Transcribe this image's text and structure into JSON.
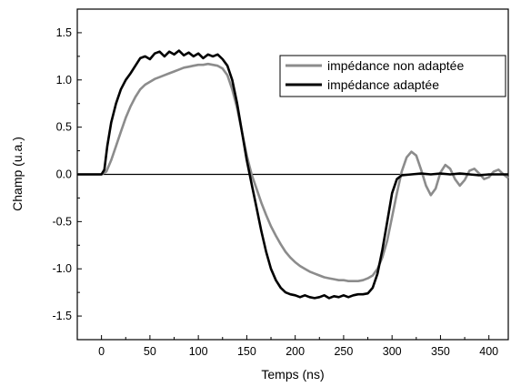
{
  "chart_data": {
    "type": "line",
    "xlabel": "Temps (ns)",
    "ylabel": "Champ (u.a.)",
    "xlim": [
      -25,
      420
    ],
    "ylim": [
      -1.75,
      1.75
    ],
    "x_ticks": [
      "0",
      "50",
      "100",
      "150",
      "200",
      "250",
      "300",
      "350",
      "400"
    ],
    "y_ticks": [
      "-1.5",
      "-1.0",
      "-0.5",
      "0.0",
      "0.5",
      "1.0",
      "1.5"
    ],
    "grid": false,
    "zero_line": true,
    "legend_position": "top-right",
    "series": [
      {
        "name": "impédance non adaptée",
        "color": "#8c8c8c",
        "points": [
          [
            -25,
            0.0
          ],
          [
            0,
            0.0
          ],
          [
            5,
            0.03
          ],
          [
            10,
            0.15
          ],
          [
            15,
            0.3
          ],
          [
            20,
            0.45
          ],
          [
            25,
            0.6
          ],
          [
            30,
            0.72
          ],
          [
            35,
            0.82
          ],
          [
            40,
            0.9
          ],
          [
            45,
            0.95
          ],
          [
            50,
            0.98
          ],
          [
            55,
            1.01
          ],
          [
            60,
            1.03
          ],
          [
            65,
            1.05
          ],
          [
            70,
            1.07
          ],
          [
            75,
            1.09
          ],
          [
            80,
            1.11
          ],
          [
            85,
            1.13
          ],
          [
            90,
            1.14
          ],
          [
            95,
            1.15
          ],
          [
            100,
            1.16
          ],
          [
            105,
            1.16
          ],
          [
            110,
            1.17
          ],
          [
            115,
            1.16
          ],
          [
            120,
            1.15
          ],
          [
            125,
            1.12
          ],
          [
            130,
            1.05
          ],
          [
            135,
            0.9
          ],
          [
            140,
            0.7
          ],
          [
            145,
            0.45
          ],
          [
            150,
            0.2
          ],
          [
            155,
            0.0
          ],
          [
            160,
            -0.15
          ],
          [
            165,
            -0.3
          ],
          [
            170,
            -0.43
          ],
          [
            175,
            -0.55
          ],
          [
            180,
            -0.65
          ],
          [
            185,
            -0.74
          ],
          [
            190,
            -0.82
          ],
          [
            195,
            -0.88
          ],
          [
            200,
            -0.93
          ],
          [
            205,
            -0.97
          ],
          [
            210,
            -1.0
          ],
          [
            215,
            -1.03
          ],
          [
            220,
            -1.05
          ],
          [
            225,
            -1.07
          ],
          [
            230,
            -1.09
          ],
          [
            235,
            -1.1
          ],
          [
            240,
            -1.11
          ],
          [
            245,
            -1.12
          ],
          [
            250,
            -1.12
          ],
          [
            255,
            -1.13
          ],
          [
            260,
            -1.13
          ],
          [
            265,
            -1.13
          ],
          [
            270,
            -1.12
          ],
          [
            275,
            -1.1
          ],
          [
            280,
            -1.07
          ],
          [
            285,
            -1.0
          ],
          [
            290,
            -0.88
          ],
          [
            295,
            -0.7
          ],
          [
            300,
            -0.45
          ],
          [
            305,
            -0.2
          ],
          [
            310,
            0.03
          ],
          [
            315,
            0.18
          ],
          [
            320,
            0.24
          ],
          [
            325,
            0.2
          ],
          [
            330,
            0.05
          ],
          [
            335,
            -0.12
          ],
          [
            340,
            -0.22
          ],
          [
            345,
            -0.15
          ],
          [
            350,
            0.02
          ],
          [
            355,
            0.1
          ],
          [
            360,
            0.06
          ],
          [
            365,
            -0.05
          ],
          [
            370,
            -0.12
          ],
          [
            375,
            -0.06
          ],
          [
            380,
            0.04
          ],
          [
            385,
            0.06
          ],
          [
            390,
            0.01
          ],
          [
            395,
            -0.05
          ],
          [
            400,
            -0.03
          ],
          [
            405,
            0.03
          ],
          [
            410,
            0.05
          ],
          [
            415,
            0.0
          ],
          [
            420,
            -0.04
          ]
        ]
      },
      {
        "name": "impédance adaptée",
        "color": "#000000",
        "points": [
          [
            -25,
            0.0
          ],
          [
            0,
            0.0
          ],
          [
            3,
            0.05
          ],
          [
            6,
            0.3
          ],
          [
            10,
            0.55
          ],
          [
            15,
            0.75
          ],
          [
            20,
            0.9
          ],
          [
            25,
            1.0
          ],
          [
            30,
            1.07
          ],
          [
            35,
            1.15
          ],
          [
            40,
            1.23
          ],
          [
            45,
            1.25
          ],
          [
            50,
            1.22
          ],
          [
            55,
            1.28
          ],
          [
            60,
            1.3
          ],
          [
            65,
            1.25
          ],
          [
            70,
            1.3
          ],
          [
            75,
            1.27
          ],
          [
            80,
            1.31
          ],
          [
            85,
            1.26
          ],
          [
            90,
            1.29
          ],
          [
            95,
            1.25
          ],
          [
            100,
            1.28
          ],
          [
            105,
            1.23
          ],
          [
            110,
            1.27
          ],
          [
            115,
            1.25
          ],
          [
            120,
            1.27
          ],
          [
            125,
            1.22
          ],
          [
            130,
            1.15
          ],
          [
            135,
            1.0
          ],
          [
            140,
            0.75
          ],
          [
            145,
            0.45
          ],
          [
            150,
            0.15
          ],
          [
            155,
            -0.1
          ],
          [
            160,
            -0.35
          ],
          [
            165,
            -0.6
          ],
          [
            170,
            -0.82
          ],
          [
            175,
            -1.0
          ],
          [
            180,
            -1.12
          ],
          [
            185,
            -1.2
          ],
          [
            190,
            -1.25
          ],
          [
            195,
            -1.27
          ],
          [
            200,
            -1.28
          ],
          [
            205,
            -1.3
          ],
          [
            210,
            -1.28
          ],
          [
            215,
            -1.3
          ],
          [
            220,
            -1.31
          ],
          [
            225,
            -1.3
          ],
          [
            230,
            -1.28
          ],
          [
            235,
            -1.31
          ],
          [
            240,
            -1.29
          ],
          [
            245,
            -1.3
          ],
          [
            250,
            -1.28
          ],
          [
            255,
            -1.3
          ],
          [
            260,
            -1.28
          ],
          [
            265,
            -1.27
          ],
          [
            270,
            -1.27
          ],
          [
            275,
            -1.26
          ],
          [
            280,
            -1.2
          ],
          [
            285,
            -1.05
          ],
          [
            290,
            -0.8
          ],
          [
            295,
            -0.5
          ],
          [
            300,
            -0.2
          ],
          [
            305,
            -0.05
          ],
          [
            310,
            -0.01
          ],
          [
            320,
            0.0
          ],
          [
            330,
            0.01
          ],
          [
            340,
            0.0
          ],
          [
            350,
            0.01
          ],
          [
            360,
            0.0
          ],
          [
            370,
            0.01
          ],
          [
            380,
            0.0
          ],
          [
            390,
            -0.01
          ],
          [
            400,
            0.0
          ],
          [
            410,
            0.0
          ],
          [
            420,
            0.0
          ]
        ]
      }
    ]
  }
}
